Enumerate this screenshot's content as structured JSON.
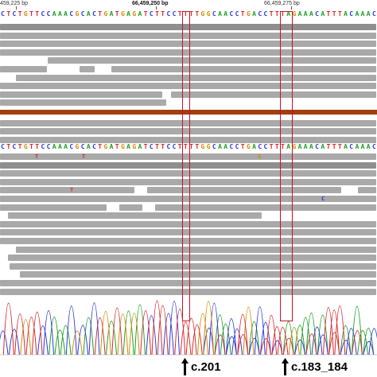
{
  "ruler": {
    "left_label": "459,225 bp",
    "mid_label": "66,459,250 bp",
    "right_label": "66,459,275 bp"
  },
  "reference_sequence": "CTCTGTTCCAAACGCACTGATGAGATCTTCCTTTTGGCAACCTGACCTTTAGAAACATTTACAAAC",
  "base_colors": {
    "A": "#1a9d22",
    "C": "#2a35d8",
    "G": "#d18b00",
    "T": "#d8282b"
  },
  "mismatches_upper": [
    {
      "base": "T",
      "row": 15
    },
    {
      "base": "T",
      "row": 15
    },
    {
      "base": "G",
      "row": 15
    },
    {
      "base": "T",
      "row": 19
    },
    {
      "base": "C",
      "row": 20
    }
  ],
  "annotations": [
    {
      "label": "c.201"
    },
    {
      "label": "c.183_184"
    }
  ],
  "colors": {
    "read": "#a9a9a9",
    "read_dark": "#8f8f8f",
    "divider": "#a0400f",
    "highlight_box": "#c8102e"
  }
}
